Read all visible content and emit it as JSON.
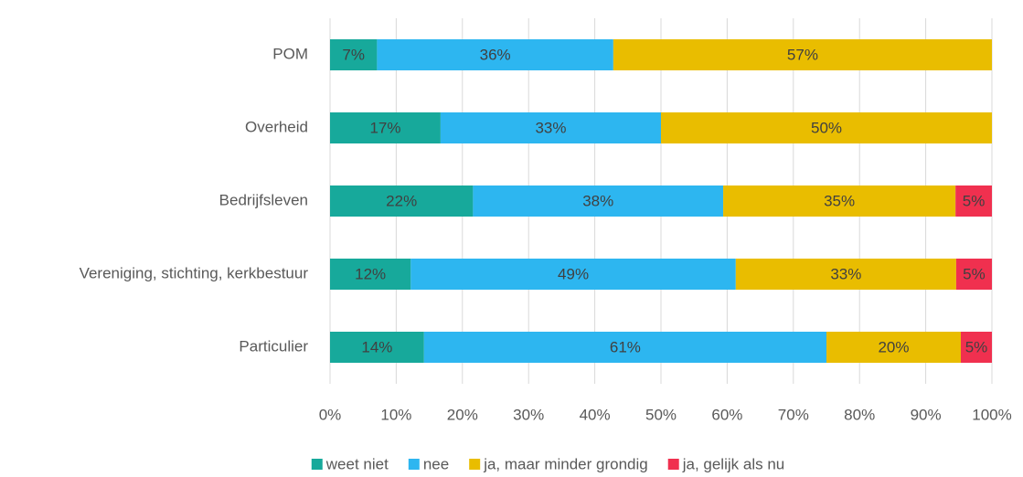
{
  "chart_data": {
    "type": "bar",
    "orientation": "horizontal",
    "stacked": true,
    "categories": [
      "POM",
      "Overheid",
      "Bedrijfsleven",
      "Vereniging, stichting, kerkbestuur",
      "Particulier"
    ],
    "series": [
      {
        "name": "weet niet",
        "color": "#17a99b",
        "values": [
          7.1,
          16.7,
          21.6,
          12.2,
          14.2
        ],
        "value_labels": [
          "7%",
          "17%",
          "22%",
          "12%",
          "14%"
        ]
      },
      {
        "name": "nee",
        "color": "#2db6f0",
        "values": [
          35.7,
          33.3,
          37.8,
          49.1,
          60.8
        ],
        "value_labels": [
          "36%",
          "33%",
          "38%",
          "49%",
          "61%"
        ]
      },
      {
        "name": "ja, maar minder grondig",
        "color": "#e9bd00",
        "values": [
          57.2,
          50.0,
          35.1,
          33.3,
          20.3
        ],
        "value_labels": [
          "57%",
          "50%",
          "35%",
          "33%",
          "20%"
        ]
      },
      {
        "name": "ja, gelijk als nu",
        "color": "#f0304f",
        "values": [
          null,
          null,
          5.5,
          5.4,
          4.7
        ],
        "value_labels": [
          null,
          null,
          "5%",
          "5%",
          "5%"
        ]
      }
    ],
    "xlim": [
      0,
      100
    ],
    "xticks": [
      {
        "value": 0,
        "label": "0%"
      },
      {
        "value": 10,
        "label": "10%"
      },
      {
        "value": 20,
        "label": "20%"
      },
      {
        "value": 30,
        "label": "30%"
      },
      {
        "value": 40,
        "label": "40%"
      },
      {
        "value": 50,
        "label": "50%"
      },
      {
        "value": 60,
        "label": "60%"
      },
      {
        "value": 70,
        "label": "70%"
      },
      {
        "value": 80,
        "label": "80%"
      },
      {
        "value": 90,
        "label": "90%"
      },
      {
        "value": 100,
        "label": "100%"
      }
    ],
    "grid": true,
    "legend": "bottom"
  }
}
